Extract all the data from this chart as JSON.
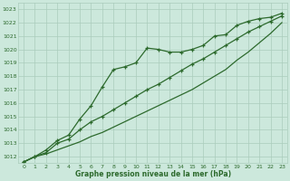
{
  "x": [
    0,
    1,
    2,
    3,
    4,
    5,
    6,
    7,
    8,
    9,
    10,
    11,
    12,
    13,
    14,
    15,
    16,
    17,
    18,
    19,
    20,
    21,
    22,
    23
  ],
  "line1": [
    1011.6,
    1012.0,
    1012.5,
    1013.2,
    1013.6,
    1014.8,
    1015.8,
    1017.2,
    1018.5,
    1018.7,
    1019.0,
    1020.1,
    1020.0,
    1019.8,
    1019.8,
    1020.0,
    1020.3,
    1021.0,
    1021.1,
    1021.8,
    1022.1,
    1022.3,
    1022.4,
    1022.7
  ],
  "line2": [
    1011.6,
    1012.0,
    1012.3,
    1013.0,
    1013.3,
    1014.0,
    1014.6,
    1015.0,
    1015.5,
    1016.0,
    1016.5,
    1017.0,
    1017.4,
    1017.9,
    1018.4,
    1018.9,
    1019.3,
    1019.8,
    1020.3,
    1020.8,
    1021.3,
    1021.7,
    1022.1,
    1022.5
  ],
  "line3": [
    1011.6,
    1012.0,
    1012.2,
    1012.5,
    1012.8,
    1013.1,
    1013.5,
    1013.8,
    1014.2,
    1014.6,
    1015.0,
    1015.4,
    1015.8,
    1016.2,
    1016.6,
    1017.0,
    1017.5,
    1018.0,
    1018.5,
    1019.2,
    1019.8,
    1020.5,
    1021.2,
    1022.0
  ],
  "ylim": [
    1011.5,
    1023.5
  ],
  "xlim": [
    -0.5,
    23.5
  ],
  "yticks": [
    1012,
    1013,
    1014,
    1015,
    1016,
    1017,
    1018,
    1019,
    1020,
    1021,
    1022,
    1023
  ],
  "xticks": [
    0,
    1,
    2,
    3,
    4,
    5,
    6,
    7,
    8,
    9,
    10,
    11,
    12,
    13,
    14,
    15,
    16,
    17,
    18,
    19,
    20,
    21,
    22,
    23
  ],
  "line_color": "#2d6a2d",
  "bg_color": "#cce8dc",
  "grid_color": "#aaccbb",
  "xlabel": "Graphe pression niveau de la mer (hPa)",
  "marker": "+"
}
